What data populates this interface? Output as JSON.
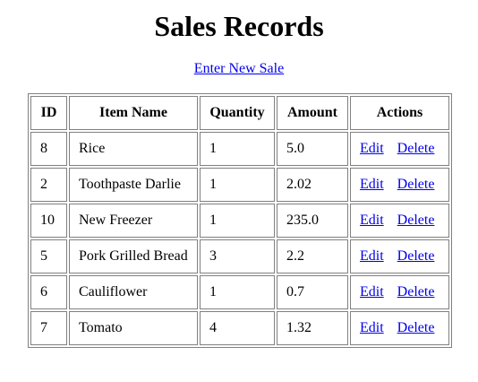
{
  "page": {
    "title": "Sales Records",
    "new_sale_label": "Enter New Sale"
  },
  "table": {
    "headers": {
      "id": "ID",
      "item_name": "Item Name",
      "quantity": "Quantity",
      "amount": "Amount",
      "actions": "Actions"
    },
    "rows": [
      {
        "id": "8",
        "item_name": "Rice",
        "quantity": "1",
        "amount": "5.0",
        "edit": "Edit",
        "delete": "Delete"
      },
      {
        "id": "2",
        "item_name": "Toothpaste Darlie",
        "quantity": "1",
        "amount": "2.02",
        "edit": "Edit",
        "delete": "Delete"
      },
      {
        "id": "10",
        "item_name": "New Freezer",
        "quantity": "1",
        "amount": "235.0",
        "edit": "Edit",
        "delete": "Delete"
      },
      {
        "id": "5",
        "item_name": "Pork Grilled Bread",
        "quantity": "3",
        "amount": "2.2",
        "edit": "Edit",
        "delete": "Delete"
      },
      {
        "id": "6",
        "item_name": "Cauliflower",
        "quantity": "1",
        "amount": "0.7",
        "edit": "Edit",
        "delete": "Delete"
      },
      {
        "id": "7",
        "item_name": "Tomato",
        "quantity": "4",
        "amount": "1.32",
        "edit": "Edit",
        "delete": "Delete"
      }
    ]
  },
  "colors": {
    "link": "#0000ee",
    "border": "#808080",
    "background": "#ffffff"
  }
}
